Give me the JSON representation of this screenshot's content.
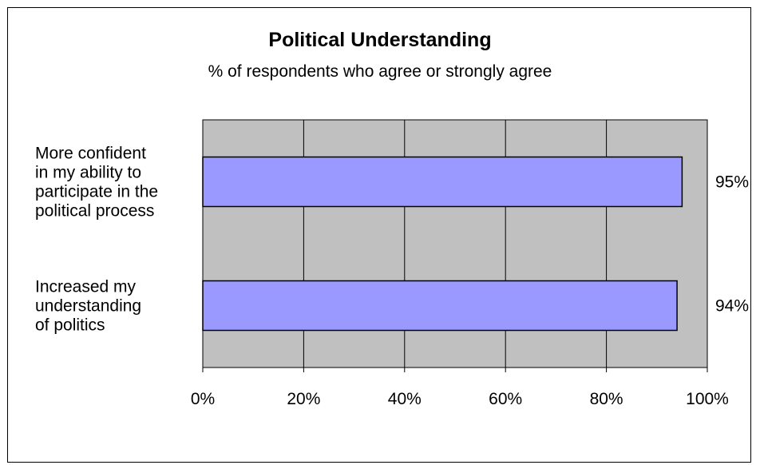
{
  "chart_data": {
    "type": "bar",
    "orientation": "horizontal",
    "title": "Political Understanding",
    "subtitle": "% of respondents who agree or strongly agree",
    "categories": [
      [
        "More confident",
        "in my ability to",
        "participate in the",
        "political process"
      ],
      [
        "Increased my",
        "understanding",
        "of politics"
      ]
    ],
    "values": [
      95,
      94
    ],
    "data_labels": [
      "95%",
      "94%"
    ],
    "xlim": [
      0,
      100
    ],
    "x_ticks": [
      0,
      20,
      40,
      60,
      80,
      100
    ],
    "x_tick_labels": [
      "0%",
      "20%",
      "40%",
      "60%",
      "80%",
      "100%"
    ],
    "grid": true,
    "legend": "none",
    "colors": {
      "bar_fill": "#9999ff",
      "plot_background": "#c0c0c0",
      "gridline": "#000000",
      "border": "#000000"
    }
  }
}
